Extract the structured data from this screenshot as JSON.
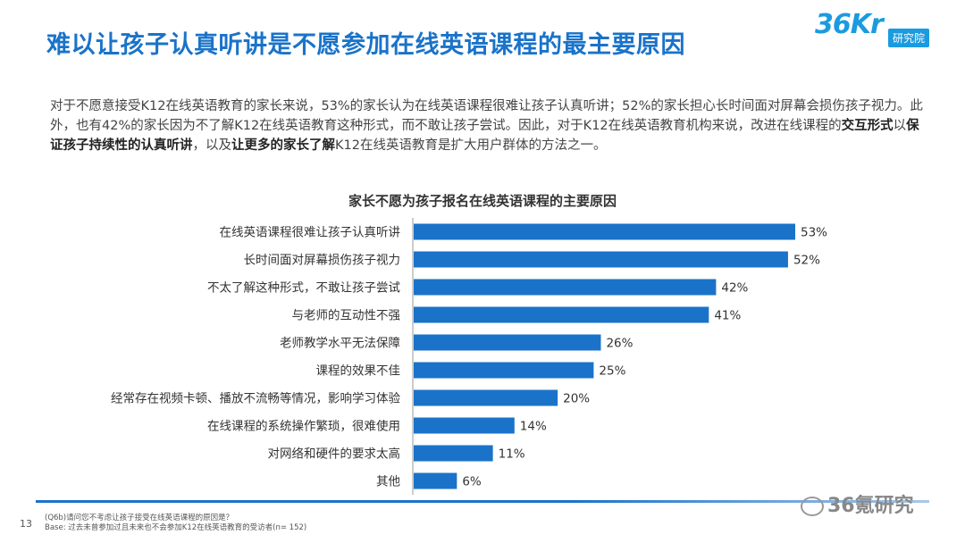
{
  "header": {
    "title": "难以让孩子认真听讲是不愿参加在线英语课程的最主要原因",
    "logo_text": "36Kr",
    "logo_tag": "研究院"
  },
  "intro": {
    "part1": "对于不愿意接受K12在线英语教育的家长来说，53%的家长认为在线英语课程很难让孩子认真听讲；52%的家长担心长时间面对屏幕会损伤孩子视力。此外，也有42%的家长因为不了解K12在线英语教育这种形式，而不敢让孩子尝试。因此，对于K12在线英语教育机构来说，改进在线课程的",
    "bold1": "交互形式",
    "part2": "以",
    "bold2": "保证孩子持续性的认真听讲",
    "part3": "，以及",
    "bold3": "让更多的家长了解",
    "part4": "K12在线英语教育是扩大用户群体的方法之一。"
  },
  "chart_data": {
    "type": "bar",
    "orientation": "horizontal",
    "title": "家长不愿为孩子报名在线英语课程的主要原因",
    "categories": [
      "在线英语课程很难让孩子认真听讲",
      "长时间面对屏幕损伤孩子视力",
      "不太了解这种形式，不敢让孩子尝试",
      "与老师的互动性不强",
      "老师教学水平无法保障",
      "课程的效果不佳",
      "经常存在视频卡顿、播放不流畅等情况，影响学习体验",
      "在线课程的系统操作繁琐，很难使用",
      "对网络和硬件的要求太高",
      "其他"
    ],
    "values": [
      53,
      52,
      42,
      41,
      26,
      25,
      20,
      14,
      11,
      6
    ],
    "value_labels": [
      "53%",
      "52%",
      "42%",
      "41%",
      "26%",
      "25%",
      "20%",
      "14%",
      "11%",
      "6%"
    ],
    "unit": "%",
    "xlim": [
      0,
      60
    ],
    "color": "#1a73c9"
  },
  "footer": {
    "page_number": "13",
    "question": "(Q6b)请问您不考虑让孩子接受在线英语课程的原因是？",
    "base": "Base: 过去未曾参加过且未来也不会参加K12在线英语教育的受访者(n= 152)",
    "watermark": "36氪研究"
  }
}
